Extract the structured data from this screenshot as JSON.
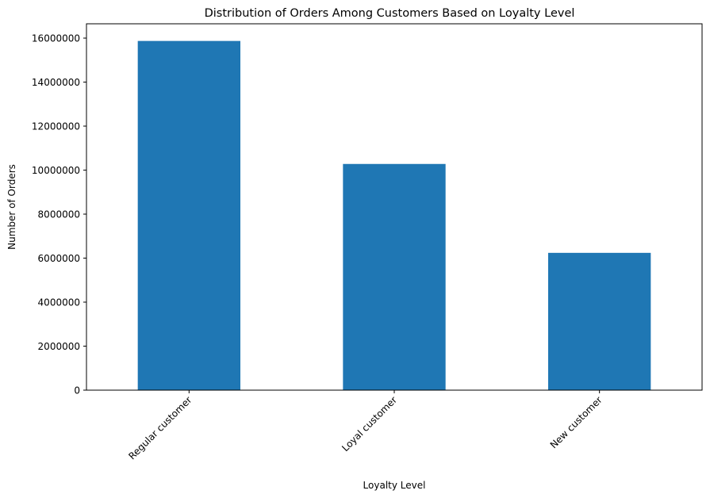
{
  "chart_data": {
    "type": "bar",
    "title": "Distribution of Orders Among Customers Based on Loyalty Level",
    "xlabel": "Loyalty Level",
    "ylabel": "Number of Orders",
    "categories": [
      "Regular customer",
      "Loyal customer",
      "New customer"
    ],
    "values": [
      15870000,
      10280000,
      6240000
    ],
    "ylim": [
      0,
      16650000
    ],
    "yticks": [
      0,
      2000000,
      4000000,
      6000000,
      8000000,
      10000000,
      12000000,
      14000000,
      16000000
    ],
    "ytick_labels": [
      "0",
      "2000000",
      "4000000",
      "6000000",
      "8000000",
      "10000000",
      "12000000",
      "14000000",
      "16000000"
    ],
    "bar_color": "#1f77b4",
    "grid": false,
    "legend": "none"
  }
}
